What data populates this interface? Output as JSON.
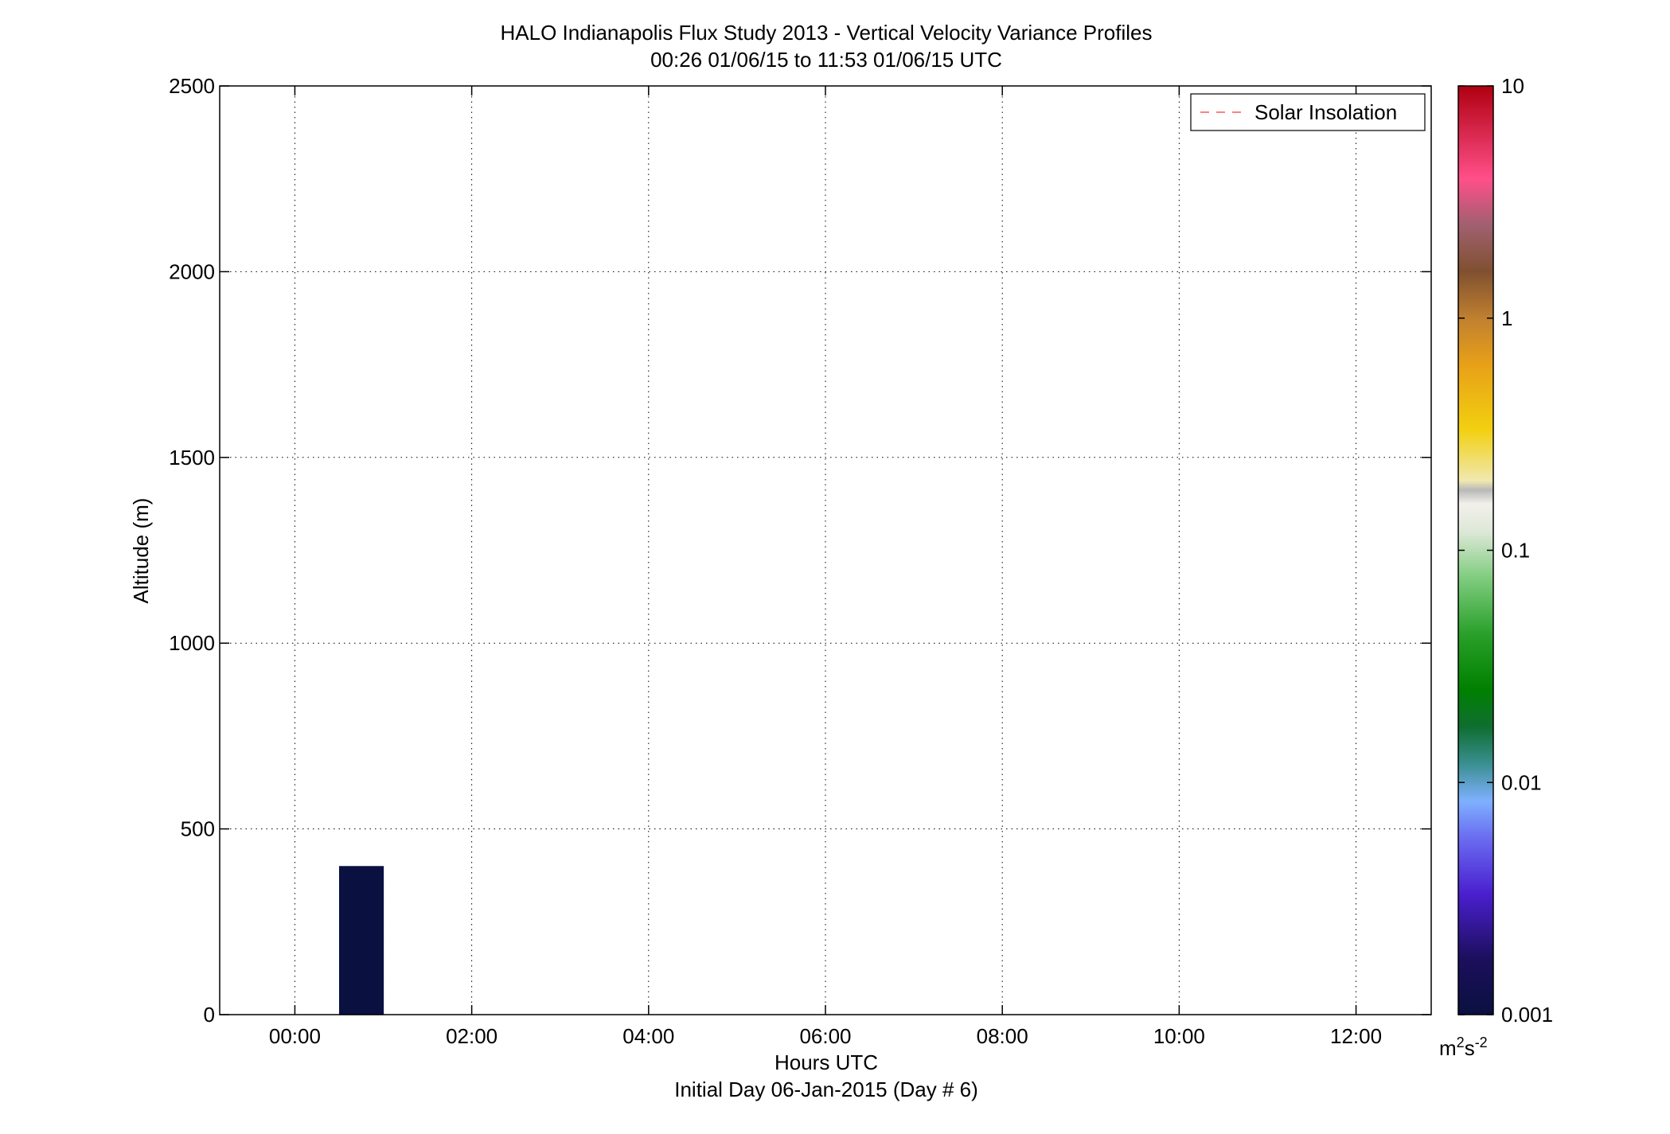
{
  "chart_data": {
    "type": "heatmap",
    "title": "HALO Indianapolis Flux Study 2013 - Vertical Velocity Variance Profiles",
    "subtitle": "00:26 01/06/15 to 11:53 01/06/15  UTC",
    "xlabel": "Hours UTC",
    "xlabel2": "Initial Day 06-Jan-2015 (Day # 6)",
    "ylabel": "Altitude (m)",
    "xlim": [
      -0.85,
      12.85
    ],
    "ylim": [
      0,
      2500
    ],
    "x_ticks": [
      0,
      2,
      4,
      6,
      8,
      10,
      12
    ],
    "x_tick_labels": [
      "00:00",
      "02:00",
      "04:00",
      "06:00",
      "08:00",
      "10:00",
      "12:00"
    ],
    "y_ticks": [
      0,
      500,
      1000,
      1500,
      2000,
      2500
    ],
    "y_tick_labels": [
      "0",
      "500",
      "1000",
      "1500",
      "2000",
      "2500"
    ],
    "grid": true,
    "legend": {
      "position": "top-right",
      "entries": [
        {
          "label": "Solar Insolation",
          "color": "#ff8080",
          "style": "dashed"
        }
      ]
    },
    "colorbar": {
      "scale": "log",
      "range": [
        0.001,
        10
      ],
      "ticks": [
        0.001,
        0.01,
        0.1,
        1,
        10
      ],
      "tick_labels": [
        "0.001",
        "0.01",
        "0.1",
        "1",
        "10"
      ],
      "unit_base": "m",
      "unit_exp1": "2",
      "unit_mid": "s",
      "unit_exp2": "-2",
      "stops": [
        [
          0.0,
          "#0a1040"
        ],
        [
          0.06,
          "#1c0f5c"
        ],
        [
          0.13,
          "#4a1fcf"
        ],
        [
          0.19,
          "#6a6cf0"
        ],
        [
          0.23,
          "#7fb0ff"
        ],
        [
          0.27,
          "#3a8f90"
        ],
        [
          0.31,
          "#0f6e30"
        ],
        [
          0.35,
          "#008000"
        ],
        [
          0.41,
          "#2aa02a"
        ],
        [
          0.47,
          "#7fcc7f"
        ],
        [
          0.52,
          "#dde8d8"
        ],
        [
          0.55,
          "#f2f0ea"
        ],
        [
          0.565,
          "#b8b8b8"
        ],
        [
          0.575,
          "#f0e8b0"
        ],
        [
          0.63,
          "#f2d010"
        ],
        [
          0.7,
          "#e8a018"
        ],
        [
          0.75,
          "#c08030"
        ],
        [
          0.8,
          "#805030"
        ],
        [
          0.85,
          "#a06070"
        ],
        [
          0.9,
          "#ff4f8a"
        ],
        [
          1.0,
          "#b00010"
        ]
      ]
    },
    "bin_width_h": 0.5,
    "bin_height_m": 50,
    "cells": [
      {
        "t": 0.5,
        "z": 0,
        "c": "#0a1040"
      },
      {
        "t": 0.5,
        "z": 50,
        "c": "#0a1040"
      },
      {
        "t": 0.5,
        "z": 100,
        "c": "#0a1040"
      },
      {
        "t": 0.5,
        "z": 150,
        "c": "#0a1040"
      },
      {
        "t": 0.5,
        "z": 200,
        "c": "#0a1040"
      },
      {
        "t": 0.5,
        "z": 250,
        "c": "#0a1040"
      },
      {
        "t": 0.5,
        "z": 300,
        "c": "#0a1040"
      },
      {
        "t": 0.5,
        "z": 350,
        "c": "#0a1040"
      }
    ]
  }
}
